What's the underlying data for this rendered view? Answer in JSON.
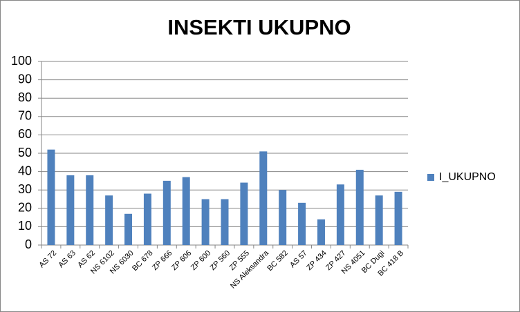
{
  "chart_data": {
    "type": "bar",
    "title": "INSEKTI UKUPNO",
    "categories": [
      "AS 72",
      "AS 63",
      "AS 62",
      "NS 6102",
      "NS 6030",
      "BC 678",
      "ZP 666",
      "ZP 606",
      "ZP 600",
      "ZP 560",
      "ZP 555",
      "NS Aleksandra",
      "BC 582",
      "AS 57",
      "ZP 434",
      "ZP 427",
      "NS 4051",
      "BC Dugi",
      "BC 418 B"
    ],
    "series": [
      {
        "name": "I_UKUPNO",
        "color": "#4f81bd",
        "values": [
          52,
          38,
          38,
          27,
          17,
          28,
          35,
          37,
          25,
          25,
          34,
          51,
          30,
          23,
          14,
          33,
          41,
          27,
          29
        ]
      }
    ],
    "ylim": [
      0,
      100
    ],
    "yticks": [
      0,
      10,
      20,
      30,
      40,
      50,
      60,
      70,
      80,
      90,
      100
    ],
    "grid": true,
    "legend": "right"
  }
}
